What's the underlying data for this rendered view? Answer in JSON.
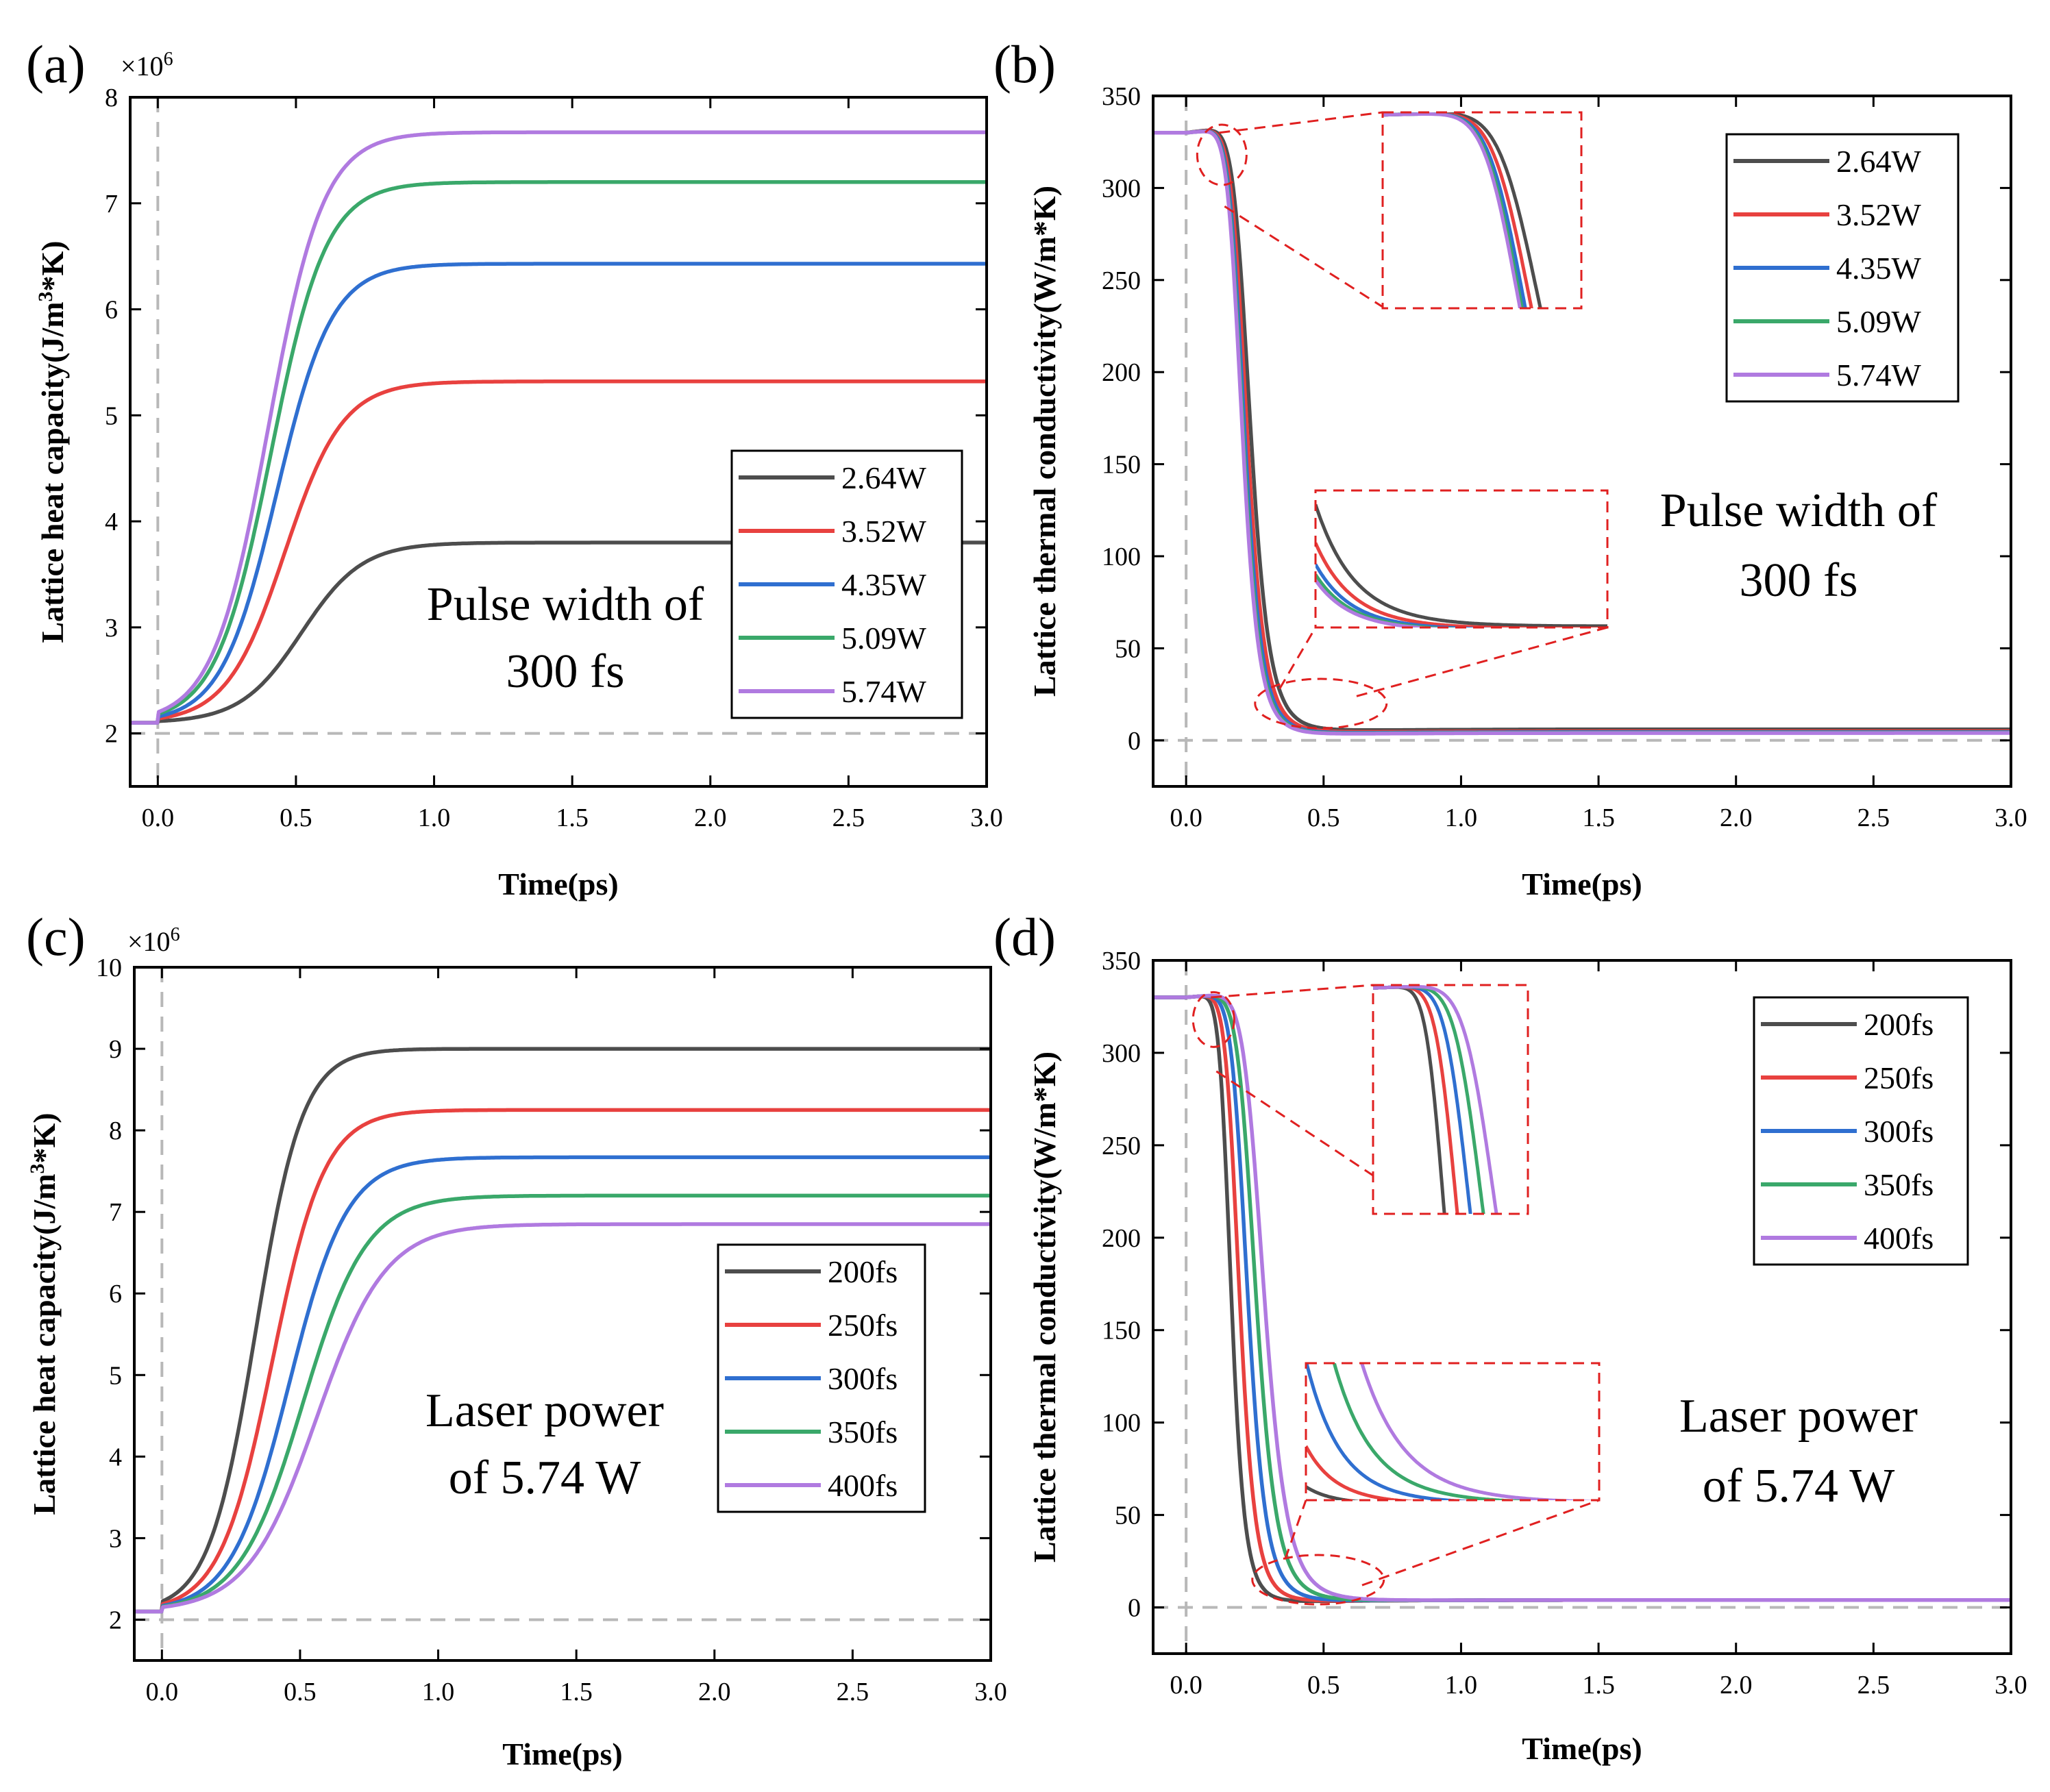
{
  "figure": {
    "colors": {
      "black": "#4d4d4d",
      "red": "#e8413f",
      "blue": "#2f6fd0",
      "green": "#3aa86a",
      "purple": "#b07ae0",
      "zoom_box": "#e02020",
      "ref_line": "#b8b8b8"
    }
  },
  "chart_data": [
    {
      "id": "a",
      "type": "line",
      "panel_label": "(a)",
      "xlabel": "Time(ps)",
      "ylabel": "Lattice heat capacity(J/m³*K)",
      "ylabel_parts": [
        "Lattice heat capacity(J/m",
        "3",
        "*K)"
      ],
      "multiplier_base": "×10",
      "multiplier_exp": "6",
      "xlim": [
        -0.1,
        3.0
      ],
      "ylim": [
        1.5,
        8.0
      ],
      "xticks": [
        "0.0",
        "0.5",
        "1.0",
        "1.5",
        "2.0",
        "2.5",
        "3.0"
      ],
      "yticks": [
        "2",
        "3",
        "4",
        "5",
        "6",
        "7",
        "8"
      ],
      "annotation": [
        "Pulse width of",
        "300 fs"
      ],
      "legend": [
        "2.64W",
        "3.52W",
        "4.35W",
        "5.09W",
        "5.74W"
      ],
      "series": [
        {
          "name": "2.64W",
          "color": "#4d4d4d",
          "start": 2.1,
          "final": 3.8,
          "t0": 0.52,
          "w": 0.11
        },
        {
          "name": "3.52W",
          "color": "#e8413f",
          "start": 2.1,
          "final": 5.32,
          "t0": 0.46,
          "w": 0.105
        },
        {
          "name": "4.35W",
          "color": "#2f6fd0",
          "start": 2.1,
          "final": 6.43,
          "t0": 0.43,
          "w": 0.1
        },
        {
          "name": "5.09W",
          "color": "#3aa86a",
          "start": 2.1,
          "final": 7.2,
          "t0": 0.41,
          "w": 0.1
        },
        {
          "name": "5.74W",
          "color": "#b07ae0",
          "start": 2.1,
          "final": 7.67,
          "t0": 0.4,
          "w": 0.1
        }
      ]
    },
    {
      "id": "b",
      "type": "line",
      "panel_label": "(b)",
      "xlabel": "Time(ps)",
      "ylabel": "Lattice thermal conductivity(W/m*K)",
      "xlim": [
        -0.12,
        3.0
      ],
      "ylim": [
        -25,
        350
      ],
      "xticks": [
        "0.0",
        "0.5",
        "1.0",
        "1.5",
        "2.0",
        "2.5",
        "3.0"
      ],
      "yticks": [
        "0",
        "50",
        "100",
        "150",
        "200",
        "250",
        "300",
        "350"
      ],
      "annotation": [
        "Pulse width of",
        "300 fs"
      ],
      "legend": [
        "2.64W",
        "3.52W",
        "4.35W",
        "5.09W",
        "5.74W"
      ],
      "series": [
        {
          "name": "2.64W",
          "color": "#4d4d4d",
          "t0": 0.235,
          "floor": 6
        },
        {
          "name": "3.52W",
          "color": "#e8413f",
          "t0": 0.222,
          "floor": 5
        },
        {
          "name": "4.35W",
          "color": "#2f6fd0",
          "t0": 0.213,
          "floor": 4.5
        },
        {
          "name": "5.09W",
          "color": "#3aa86a",
          "t0": 0.208,
          "floor": 4.2
        },
        {
          "name": "5.74W",
          "color": "#b07ae0",
          "t0": 0.205,
          "floor": 4
        }
      ]
    },
    {
      "id": "c",
      "type": "line",
      "panel_label": "(c)",
      "xlabel": "Time(ps)",
      "ylabel": "Lattice heat capacity(J/m³*K)",
      "ylabel_parts": [
        "Lattice heat capacity(J/m",
        "3",
        "*K)"
      ],
      "multiplier_base": "×10",
      "multiplier_exp": "6",
      "xlim": [
        -0.1,
        3.0
      ],
      "ylim": [
        1.5,
        10.0
      ],
      "xticks": [
        "0.0",
        "0.5",
        "1.0",
        "1.5",
        "2.0",
        "2.5",
        "3.0"
      ],
      "yticks": [
        "2",
        "3",
        "4",
        "5",
        "6",
        "7",
        "8",
        "9",
        "10"
      ],
      "annotation": [
        "Laser power",
        "of 5.74 W"
      ],
      "legend": [
        "200fs",
        "250fs",
        "300fs",
        "350fs",
        "400fs"
      ],
      "series": [
        {
          "name": "200fs",
          "color": "#4d4d4d",
          "start": 2.1,
          "final": 9.0,
          "t0": 0.34,
          "w": 0.085
        },
        {
          "name": "250fs",
          "color": "#e8413f",
          "start": 2.1,
          "final": 8.25,
          "t0": 0.4,
          "w": 0.095
        },
        {
          "name": "300fs",
          "color": "#2f6fd0",
          "start": 2.1,
          "final": 7.67,
          "t0": 0.46,
          "w": 0.105
        },
        {
          "name": "350fs",
          "color": "#3aa86a",
          "start": 2.1,
          "final": 7.2,
          "t0": 0.51,
          "w": 0.115
        },
        {
          "name": "400fs",
          "color": "#b07ae0",
          "start": 2.1,
          "final": 6.85,
          "t0": 0.56,
          "w": 0.125
        }
      ]
    },
    {
      "id": "d",
      "type": "line",
      "panel_label": "(d)",
      "xlabel": "Time(ps)",
      "ylabel": "Lattice thermal conductivity(W/m*K)",
      "xlim": [
        -0.12,
        3.0
      ],
      "ylim": [
        -25,
        350
      ],
      "xticks": [
        "0.0",
        "0.5",
        "1.0",
        "1.5",
        "2.0",
        "2.5",
        "3.0"
      ],
      "yticks": [
        "0",
        "50",
        "100",
        "150",
        "200",
        "250",
        "300",
        "350"
      ],
      "annotation": [
        "Laser power",
        "of 5.74 W"
      ],
      "legend": [
        "200fs",
        "250fs",
        "300fs",
        "350fs",
        "400fs"
      ],
      "series": [
        {
          "name": "200fs",
          "color": "#4d4d4d",
          "t0": 0.165,
          "floor": 4
        },
        {
          "name": "250fs",
          "color": "#e8413f",
          "t0": 0.195,
          "floor": 4
        },
        {
          "name": "300fs",
          "color": "#2f6fd0",
          "t0": 0.225,
          "floor": 4
        },
        {
          "name": "350fs",
          "color": "#3aa86a",
          "t0": 0.255,
          "floor": 4
        },
        {
          "name": "400fs",
          "color": "#b07ae0",
          "t0": 0.285,
          "floor": 4
        }
      ]
    }
  ]
}
